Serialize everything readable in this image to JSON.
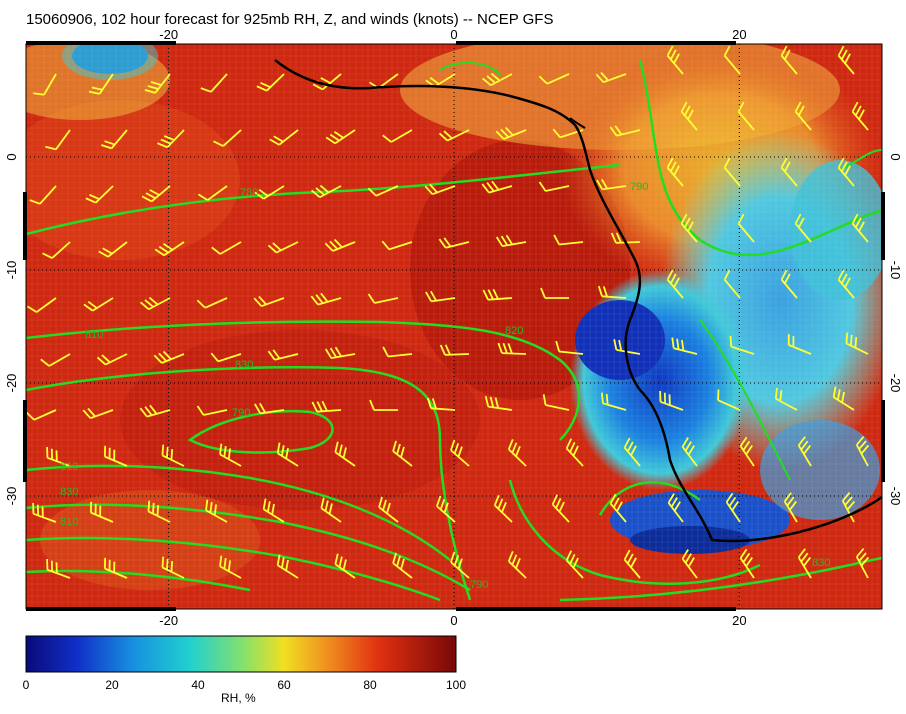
{
  "title": "15060906, 102 hour forecast for 925mb RH, Z, and winds (knots) -- NCEP GFS",
  "map": {
    "lon_range": [
      -30,
      30
    ],
    "lat_range": [
      -40,
      10
    ],
    "lon_ticks": [
      "-20",
      "0",
      "20"
    ],
    "lat_ticks_left": [
      "0",
      "-10",
      "-20",
      "-30"
    ],
    "lat_ticks_right": [
      "0",
      "-10",
      "-20",
      "-30"
    ],
    "contour_labels": [
      "780",
      "790",
      "810",
      "820",
      "830",
      "790",
      "810",
      "830",
      "810",
      "790",
      "830"
    ],
    "colors": {
      "humid": "#c8220e",
      "dry": "#1a55c8",
      "contour": "#22dd22",
      "barb": "#ffff33",
      "coast": "#000000"
    }
  },
  "colorbar": {
    "ticks": [
      "0",
      "20",
      "40",
      "60",
      "80",
      "100"
    ],
    "label": "RH, %"
  }
}
